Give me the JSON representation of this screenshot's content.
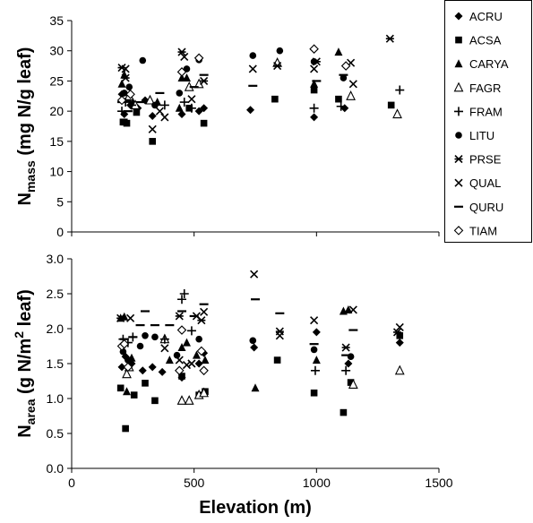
{
  "chart_data": [
    {
      "type": "scatter",
      "panel": "top",
      "ylabel_main": "N",
      "ylabel_sub": "mass",
      "ylabel_unit": " (mg N/g leaf)",
      "ylim": [
        0,
        35
      ],
      "yticks": [
        "0",
        "5",
        "10",
        "15",
        "20",
        "25",
        "30",
        "35"
      ],
      "xlim": [
        0,
        1500
      ],
      "show_xtick_labels": false,
      "series": [
        {
          "name": "ACRU",
          "marker": "diamond",
          "points": [
            [
              205,
              22.8
            ],
            [
              215,
              19.5
            ],
            [
              240,
              21
            ],
            [
              270,
              20.5
            ],
            [
              300,
              21.8
            ],
            [
              330,
              19.2
            ],
            [
              450,
              19.5
            ],
            [
              520,
              20
            ],
            [
              540,
              20.5
            ],
            [
              730,
              20.2
            ],
            [
              990,
              19
            ],
            [
              1115,
              20.5
            ]
          ]
        },
        {
          "name": "ACSA",
          "marker": "square",
          "points": [
            [
              210,
              18.2
            ],
            [
              215,
              18.2
            ],
            [
              225,
              18
            ],
            [
              265,
              19.8
            ],
            [
              330,
              15
            ],
            [
              480,
              20.5
            ],
            [
              540,
              18
            ],
            [
              830,
              22
            ],
            [
              990,
              23.5
            ],
            [
              1090,
              22
            ],
            [
              1305,
              21
            ]
          ]
        },
        {
          "name": "CARYA",
          "marker": "triangle",
          "points": [
            [
              205,
              24.5
            ],
            [
              215,
              26
            ],
            [
              230,
              22
            ],
            [
              250,
              21.5
            ],
            [
              350,
              21.5
            ],
            [
              440,
              20.5
            ],
            [
              450,
              25.5
            ],
            [
              470,
              25.5
            ],
            [
              990,
              24.5
            ],
            [
              1090,
              29.8
            ]
          ]
        },
        {
          "name": "FAGR",
          "marker": "triangle-open",
          "points": [
            [
              235,
              22.5
            ],
            [
              260,
              21
            ],
            [
              320,
              21.8
            ],
            [
              480,
              24
            ],
            [
              520,
              24.5
            ],
            [
              840,
              28
            ],
            [
              1140,
              22.5
            ],
            [
              1330,
              19.5
            ]
          ]
        },
        {
          "name": "FRAM",
          "marker": "plus",
          "points": [
            [
              205,
              20
            ],
            [
              220,
              21.5
            ],
            [
              245,
              21
            ],
            [
              380,
              21
            ],
            [
              460,
              21.5
            ],
            [
              490,
              20.5
            ],
            [
              990,
              20.5
            ],
            [
              1100,
              20.8
            ],
            [
              1340,
              23.5
            ]
          ]
        },
        {
          "name": "LITU",
          "marker": "circle",
          "points": [
            [
              215,
              23
            ],
            [
              235,
              24
            ],
            [
              290,
              28.4
            ],
            [
              340,
              21
            ],
            [
              440,
              23
            ],
            [
              470,
              27
            ],
            [
              520,
              28.5
            ],
            [
              740,
              29.2
            ],
            [
              850,
              30
            ],
            [
              990,
              28.2
            ],
            [
              1110,
              25.5
            ]
          ]
        },
        {
          "name": "PRSE",
          "marker": "asterisk",
          "points": [
            [
              205,
              27.2
            ],
            [
              220,
              25.5
            ],
            [
              450,
              29.8
            ],
            [
              540,
              25
            ],
            [
              840,
              27.5
            ],
            [
              1000,
              28.2
            ],
            [
              1300,
              32
            ]
          ]
        },
        {
          "name": "QUAL",
          "marker": "x",
          "points": [
            [
              220,
              27
            ],
            [
              330,
              17
            ],
            [
              360,
              20
            ],
            [
              380,
              19
            ],
            [
              460,
              29
            ],
            [
              490,
              22
            ],
            [
              740,
              27
            ],
            [
              990,
              27
            ],
            [
              1140,
              28
            ],
            [
              1150,
              24.5
            ]
          ]
        },
        {
          "name": "QURU",
          "marker": "dash",
          "points": [
            [
              205,
              21.5
            ],
            [
              230,
              20
            ],
            [
              280,
              21.5
            ],
            [
              360,
              23
            ],
            [
              460,
              25.3
            ],
            [
              500,
              24
            ],
            [
              540,
              26
            ],
            [
              740,
              24.2
            ],
            [
              1000,
              25
            ],
            [
              1110,
              26
            ]
          ]
        },
        {
          "name": "TIAM",
          "marker": "diamond-open",
          "points": [
            [
              205,
              21.8
            ],
            [
              240,
              22.8
            ],
            [
              450,
              26.5
            ],
            [
              520,
              28.8
            ],
            [
              990,
              30.3
            ],
            [
              1120,
              27.5
            ]
          ]
        }
      ]
    },
    {
      "type": "scatter",
      "panel": "bottom",
      "ylabel_main": "N",
      "ylabel_sub": "area",
      "ylabel_unit": " (g N/m",
      "ylabel_sup": "2",
      "ylabel_unit2": " leaf)",
      "ylim": [
        0,
        3
      ],
      "yticks": [
        "0.0",
        "0.5",
        "1.0",
        "1.5",
        "2.0",
        "2.5",
        "3.0"
      ],
      "xlim": [
        0,
        1500
      ],
      "xticks": [
        "0",
        "500",
        "1000",
        "1500"
      ],
      "xlabel": "Elevation (m)",
      "show_xtick_labels": true,
      "series": [
        {
          "name": "ACRU",
          "marker": "diamond",
          "points": [
            [
              205,
              1.45
            ],
            [
              220,
              1.6
            ],
            [
              245,
              1.5
            ],
            [
              290,
              1.4
            ],
            [
              330,
              1.45
            ],
            [
              370,
              1.38
            ],
            [
              450,
              1.3
            ],
            [
              520,
              1.5
            ],
            [
              540,
              1.65
            ],
            [
              745,
              1.73
            ],
            [
              1000,
              1.95
            ],
            [
              1130,
              1.5
            ],
            [
              1340,
              1.8
            ]
          ]
        },
        {
          "name": "ACSA",
          "marker": "square",
          "points": [
            [
              200,
              1.15
            ],
            [
              220,
              0.57
            ],
            [
              255,
              1.05
            ],
            [
              300,
              1.22
            ],
            [
              340,
              0.97
            ],
            [
              450,
              1.32
            ],
            [
              520,
              1.05
            ],
            [
              545,
              1.1
            ],
            [
              840,
              1.55
            ],
            [
              990,
              1.08
            ],
            [
              1110,
              0.8
            ],
            [
              1140,
              1.23
            ],
            [
              1340,
              1.9
            ]
          ]
        },
        {
          "name": "CARYA",
          "marker": "triangle",
          "points": [
            [
              200,
              2.15
            ],
            [
              215,
              2.17
            ],
            [
              225,
              1.1
            ],
            [
              245,
              1.58
            ],
            [
              400,
              1.55
            ],
            [
              450,
              1.73
            ],
            [
              470,
              1.8
            ],
            [
              510,
              1.62
            ],
            [
              545,
              1.55
            ],
            [
              750,
              1.15
            ],
            [
              1000,
              1.55
            ],
            [
              1110,
              2.25
            ],
            [
              1130,
              2.27
            ]
          ]
        },
        {
          "name": "FAGR",
          "marker": "triangle-open",
          "points": [
            [
              225,
              1.35
            ],
            [
              235,
              1.45
            ],
            [
              380,
              1.85
            ],
            [
              450,
              0.97
            ],
            [
              480,
              0.97
            ],
            [
              520,
              1.05
            ],
            [
              540,
              1.08
            ],
            [
              1150,
              1.2
            ],
            [
              1340,
              1.4
            ]
          ]
        },
        {
          "name": "FRAM",
          "marker": "plus",
          "points": [
            [
              210,
              1.85
            ],
            [
              230,
              1.8
            ],
            [
              250,
              1.88
            ],
            [
              380,
              1.85
            ],
            [
              450,
              2.42
            ],
            [
              460,
              2.5
            ],
            [
              490,
              1.97
            ],
            [
              995,
              1.4
            ],
            [
              1120,
              1.4
            ]
          ]
        },
        {
          "name": "LITU",
          "marker": "circle",
          "points": [
            [
              210,
              1.67
            ],
            [
              230,
              1.55
            ],
            [
              280,
              1.75
            ],
            [
              300,
              1.9
            ],
            [
              340,
              1.88
            ],
            [
              430,
              1.62
            ],
            [
              520,
              1.85
            ],
            [
              740,
              1.83
            ],
            [
              990,
              1.7
            ],
            [
              1140,
              1.6
            ]
          ]
        },
        {
          "name": "PRSE",
          "marker": "asterisk",
          "points": [
            [
              200,
              2.15
            ],
            [
              440,
              2.18
            ],
            [
              530,
              2.12
            ],
            [
              850,
              1.96
            ],
            [
              1120,
              1.73
            ],
            [
              1330,
              1.95
            ]
          ]
        },
        {
          "name": "QUAL",
          "marker": "x",
          "points": [
            [
              240,
              2.15
            ],
            [
              380,
              1.72
            ],
            [
              440,
              1.55
            ],
            [
              470,
              1.48
            ],
            [
              490,
              1.5
            ],
            [
              510,
              2.18
            ],
            [
              540,
              2.24
            ],
            [
              745,
              2.78
            ],
            [
              850,
              1.9
            ],
            [
              990,
              2.12
            ],
            [
              1150,
              2.27
            ],
            [
              1340,
              2.02
            ]
          ]
        },
        {
          "name": "QURU",
          "marker": "dash",
          "points": [
            [
              215,
              1.85
            ],
            [
              250,
              1.88
            ],
            [
              280,
              2.05
            ],
            [
              300,
              2.25
            ],
            [
              340,
              2.05
            ],
            [
              400,
              2.05
            ],
            [
              450,
              2.25
            ],
            [
              500,
              2.18
            ],
            [
              540,
              2.35
            ],
            [
              750,
              2.42
            ],
            [
              850,
              2.22
            ],
            [
              990,
              1.78
            ],
            [
              1120,
              1.62
            ],
            [
              1150,
              1.98
            ]
          ]
        },
        {
          "name": "TIAM",
          "marker": "diamond-open",
          "points": [
            [
              205,
              1.75
            ],
            [
              215,
              1.78
            ],
            [
              230,
              1.45
            ],
            [
              440,
              1.4
            ],
            [
              450,
              1.98
            ],
            [
              530,
              1.68
            ],
            [
              540,
              1.4
            ]
          ]
        }
      ]
    }
  ],
  "legend": [
    "ACRU",
    "ACSA",
    "CARYA",
    "FAGR",
    "FRAM",
    "LITU",
    "PRSE",
    "QUAL",
    "QURU",
    "TIAM"
  ]
}
